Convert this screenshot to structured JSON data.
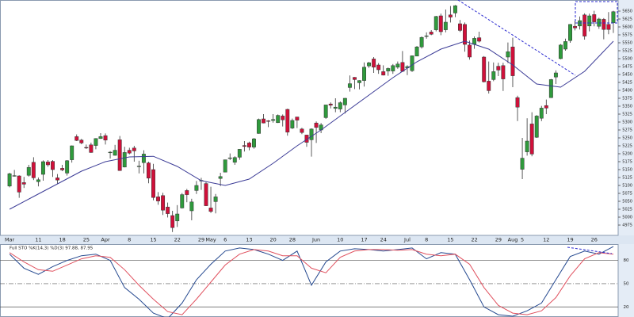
{
  "chart_data": [
    {
      "type": "candlestick",
      "categories": [
        "Mar",
        null,
        null,
        null,
        null,
        null,
        "11",
        null,
        null,
        null,
        null,
        "18",
        null,
        null,
        null,
        null,
        "25",
        null,
        null,
        null,
        "Apr",
        null,
        null,
        null,
        null,
        "8",
        null,
        null,
        null,
        null,
        "15",
        null,
        null,
        null,
        null,
        "22",
        null,
        null,
        null,
        null,
        "29",
        null,
        "May",
        null,
        null,
        "6",
        null,
        null,
        null,
        null,
        "13",
        null,
        null,
        null,
        null,
        "20",
        null,
        null,
        null,
        "28",
        null,
        null,
        null,
        null,
        "Jun",
        null,
        null,
        null,
        null,
        "10",
        null,
        null,
        null,
        null,
        "17",
        null,
        null,
        null,
        "24",
        null,
        null,
        null,
        null,
        "Jul",
        null,
        null,
        null,
        "8",
        null,
        null,
        null,
        null,
        "15",
        null,
        null,
        null,
        null,
        "22",
        null,
        null,
        null,
        null,
        "29",
        null,
        null,
        "Aug",
        null,
        "5",
        null,
        null,
        null,
        null,
        "12",
        null,
        null,
        null,
        null,
        "19",
        null,
        null,
        null,
        null,
        "26",
        null,
        null,
        null,
        null
      ],
      "open": [
        5098,
        5131,
        5130,
        5109,
        5132,
        5173,
        5112,
        5135,
        5174,
        5176,
        5124,
        5154,
        5139,
        5181,
        5254,
        5243,
        5220,
        5228,
        5226,
        5248,
        5257,
        5204,
        5195,
        5244,
        5158,
        5211,
        5218,
        5160,
        5172,
        5171,
        5150,
        5064,
        5068,
        5032,
        5005,
        4988,
        5029,
        5084,
        5020,
        5084,
        5115,
        5106,
        5029,
        5049,
        5122,
        5142,
        5187,
        5173,
        5189,
        5226,
        5234,
        5221,
        5264,
        5310,
        5304,
        5305,
        5298,
        5319,
        5340,
        5281,
        5316,
        5278,
        5259,
        5244,
        5297,
        5275,
        5314,
        5357,
        5343,
        5341,
        5354,
        5409,
        5441,
        5424,
        5431,
        5477,
        5499,
        5480,
        5459,
        5461,
        5461,
        5473,
        5488,
        5471,
        5462,
        5508,
        5537,
        5572,
        5584,
        5591,
        5635,
        5591,
        5638,
        5644,
        5610,
        5608,
        5543,
        5545,
        5566,
        5505,
        5429,
        5434,
        5476,
        5478,
        5505,
        5537,
        5377,
        5151,
        5206,
        5294,
        5252,
        5312,
        5352,
        5377,
        5442,
        5500,
        5530,
        5557,
        5602,
        5603,
        5638,
        5603,
        5639,
        5602,
        5624,
        5608,
        5613
      ],
      "high": [
        5140,
        5149,
        5132,
        5127,
        5165,
        5189,
        5125,
        5179,
        5180,
        5180,
        5136,
        5165,
        5180,
        5226,
        5261,
        5247,
        5229,
        5235,
        5249,
        5265,
        5264,
        5208,
        5228,
        5256,
        5222,
        5219,
        5225,
        5178,
        5211,
        5175,
        5168,
        5079,
        5077,
        5046,
        5020,
        5038,
        5076,
        5089,
        5058,
        5114,
        5124,
        5111,
        5096,
        5073,
        5140,
        5181,
        5201,
        5192,
        5215,
        5240,
        5238,
        5250,
        5311,
        5325,
        5306,
        5325,
        5324,
        5324,
        5342,
        5311,
        5316,
        5282,
        5260,
        5280,
        5302,
        5297,
        5354,
        5362,
        5375,
        5365,
        5376,
        5447,
        5442,
        5432,
        5488,
        5490,
        5505,
        5486,
        5479,
        5472,
        5483,
        5491,
        5524,
        5479,
        5510,
        5540,
        5570,
        5583,
        5590,
        5635,
        5642,
        5655,
        5666,
        5669,
        5622,
        5614,
        5557,
        5570,
        5585,
        5508,
        5491,
        5488,
        5487,
        5487,
        5551,
        5566,
        5383,
        5250,
        5312,
        5331,
        5322,
        5351,
        5371,
        5436,
        5463,
        5546,
        5563,
        5609,
        5620,
        5633,
        5643,
        5642,
        5651,
        5629,
        5628,
        5647,
        5651
      ],
      "low": [
        5094,
        5128,
        5061,
        5092,
        5128,
        5117,
        5097,
        5115,
        5159,
        5127,
        5105,
        5145,
        5131,
        5172,
        5240,
        5230,
        5215,
        5203,
        5214,
        5247,
        5229,
        5185,
        5194,
        5146,
        5157,
        5198,
        5175,
        5138,
        5138,
        5107,
        5053,
        5039,
        5007,
        4999,
        4953,
        4969,
        5027,
        5047,
        4990,
        5073,
        5086,
        5035,
        5013,
        5012,
        5098,
        5142,
        5180,
        5165,
        5181,
        5207,
        5211,
        5216,
        5263,
        5296,
        5284,
        5298,
        5297,
        5286,
        5257,
        5278,
        5281,
        5262,
        5222,
        5191,
        5234,
        5265,
        5310,
        5343,
        5331,
        5331,
        5327,
        5396,
        5404,
        5403,
        5412,
        5471,
        5455,
        5452,
        5447,
        5446,
        5452,
        5468,
        5458,
        5448,
        5458,
        5508,
        5532,
        5563,
        5574,
        5586,
        5574,
        5583,
        5614,
        5631,
        5584,
        5522,
        5497,
        5531,
        5551,
        5425,
        5390,
        5429,
        5445,
        5398,
        5486,
        5410,
        5303,
        5120,
        5194,
        5192,
        5250,
        5303,
        5325,
        5376,
        5420,
        5498,
        5525,
        5550,
        5589,
        5592,
        5560,
        5586,
        5602,
        5594,
        5561,
        5577,
        5581
      ],
      "close": [
        5137,
        5131,
        5079,
        5104,
        5157,
        5124,
        5118,
        5175,
        5165,
        5150,
        5117,
        5149,
        5178,
        5225,
        5242,
        5234,
        5218,
        5204,
        5248,
        5254,
        5243,
        5205,
        5211,
        5147,
        5204,
        5202,
        5209,
        5161,
        5199,
        5123,
        5062,
        5051,
        5022,
        5011,
        4967,
        5010,
        5071,
        5071,
        5048,
        5100,
        5116,
        5036,
        5018,
        5064,
        5128,
        5181,
        5187,
        5188,
        5214,
        5223,
        5221,
        5247,
        5308,
        5297,
        5303,
        5308,
        5321,
        5307,
        5268,
        5305,
        5306,
        5267,
        5236,
        5278,
        5283,
        5291,
        5354,
        5353,
        5347,
        5361,
        5375,
        5421,
        5434,
        5431,
        5473,
        5487,
        5473,
        5465,
        5448,
        5469,
        5478,
        5483,
        5460,
        5475,
        5509,
        5537,
        5567,
        5572,
        5577,
        5633,
        5585,
        5615,
        5631,
        5667,
        5589,
        5545,
        5505,
        5564,
        5555,
        5427,
        5399,
        5459,
        5464,
        5436,
        5522,
        5446,
        5347,
        5186,
        5240,
        5199,
        5319,
        5344,
        5344,
        5434,
        5455,
        5543,
        5554,
        5608,
        5597,
        5620,
        5571,
        5635,
        5616,
        5625,
        5592,
        5592,
        5648
      ],
      "up_color": "#2f9a3c",
      "down_color": "#d0103a",
      "overlay": {
        "color": "#3b3b96",
        "x": [
          0,
          5,
          10,
          15,
          20,
          25,
          30,
          35,
          40,
          45,
          50,
          55,
          60,
          65,
          70,
          75,
          80,
          85,
          90,
          95,
          100,
          105,
          110,
          115,
          120,
          126
        ],
        "values": [
          5025,
          5065,
          5105,
          5145,
          5175,
          5190,
          5192,
          5160,
          5115,
          5100,
          5120,
          5170,
          5225,
          5275,
          5330,
          5385,
          5440,
          5490,
          5530,
          5555,
          5530,
          5480,
          5420,
          5410,
          5460,
          5555
        ]
      },
      "ylim": [
        4945,
        5680
      ],
      "yticks": [
        4975,
        5000,
        5025,
        5050,
        5075,
        5100,
        5125,
        5150,
        5175,
        5200,
        5225,
        5250,
        5275,
        5300,
        5325,
        5350,
        5375,
        5400,
        5425,
        5450,
        5475,
        5500,
        5525,
        5550,
        5575,
        5600,
        5625,
        5650
      ]
    },
    {
      "type": "line",
      "title": "Full STO %K(14,3) %D(3) 97.88, 87.95",
      "x": [
        0,
        3,
        6,
        9,
        12,
        15,
        18,
        21,
        24,
        27,
        30,
        33,
        36,
        39,
        42,
        45,
        48,
        51,
        54,
        57,
        60,
        63,
        66,
        69,
        72,
        75,
        78,
        81,
        84,
        87,
        90,
        93,
        96,
        99,
        102,
        105,
        108,
        111,
        114,
        117,
        120,
        123,
        126
      ],
      "series": [
        {
          "color": "#24488f",
          "values": [
            88,
            70,
            62,
            72,
            80,
            86,
            88,
            80,
            45,
            30,
            12,
            5,
            25,
            55,
            75,
            92,
            96,
            94,
            88,
            80,
            92,
            48,
            78,
            92,
            95,
            94,
            92,
            94,
            96,
            82,
            90,
            88,
            55,
            20,
            10,
            8,
            15,
            25,
            55,
            85,
            92,
            88,
            97.88
          ]
        },
        {
          "color": "#e0505e",
          "values": [
            90,
            78,
            68,
            66,
            74,
            82,
            86,
            84,
            68,
            48,
            30,
            14,
            10,
            30,
            52,
            74,
            88,
            94,
            92,
            86,
            86,
            70,
            64,
            84,
            92,
            94,
            94,
            93,
            94,
            88,
            86,
            88,
            75,
            45,
            22,
            12,
            10,
            15,
            32,
            60,
            82,
            90,
            87.95
          ]
        }
      ],
      "ylim": [
        7,
        100
      ],
      "yticks": [
        20,
        50,
        80
      ]
    }
  ]
}
